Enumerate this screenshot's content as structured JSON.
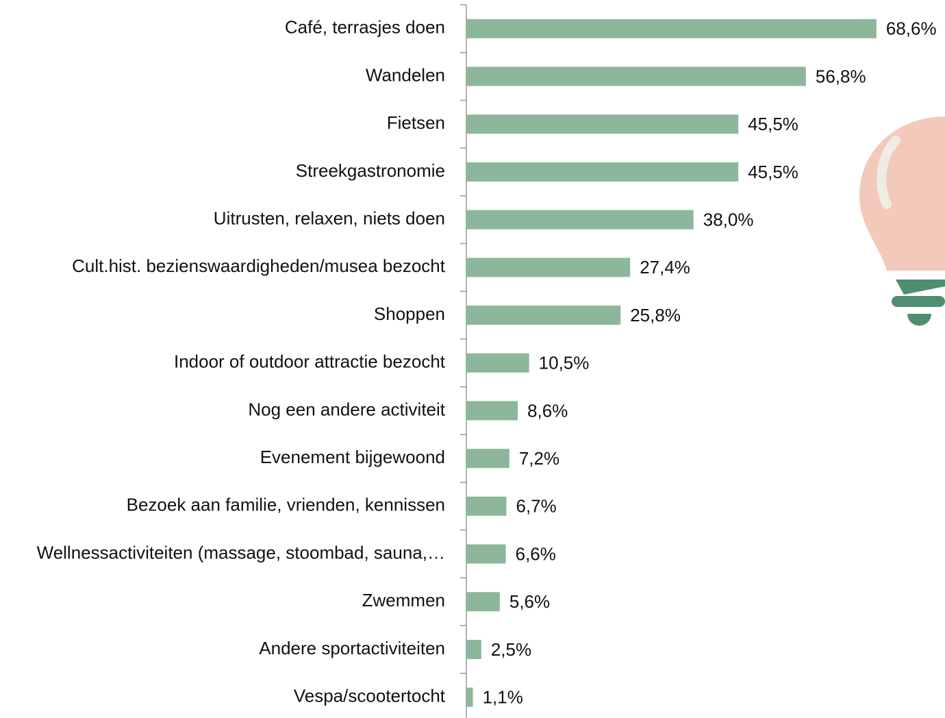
{
  "chart_data": {
    "type": "bar",
    "orientation": "horizontal",
    "color": "#8db79a",
    "categories": [
      "Café, terrasjes doen",
      "Wandelen",
      "Fietsen",
      "Streekgastronomie",
      "Uitrusten, relaxen, niets doen",
      "Cult.hist. bezienswaardigheden/musea bezocht",
      "Shoppen",
      "Indoor of outdoor attractie bezocht",
      "Nog een andere activiteit",
      "Evenement bijgewoond",
      "Bezoek aan familie, vrienden, kennissen",
      "Wellnessactiviteiten (massage, stoombad, sauna,…",
      "Zwemmen",
      "Andere sportactiviteiten",
      "Vespa/scootertocht"
    ],
    "values": [
      68.6,
      56.8,
      45.5,
      45.5,
      38.0,
      27.4,
      25.8,
      10.5,
      8.6,
      7.2,
      6.7,
      6.6,
      5.6,
      2.5,
      1.1
    ],
    "value_labels": [
      "68,6%",
      "56,8%",
      "45,5%",
      "45,5%",
      "38,0%",
      "27,4%",
      "25,8%",
      "10,5%",
      "8,6%",
      "7,2%",
      "6,7%",
      "6,6%",
      "5,6%",
      "2,5%",
      "1,1%"
    ]
  }
}
